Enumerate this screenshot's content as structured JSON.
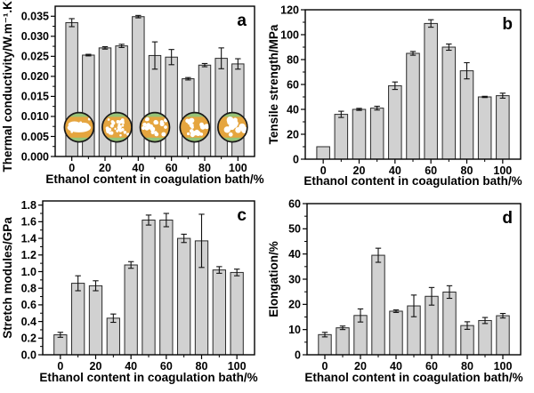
{
  "style": {
    "background": "#ffffff",
    "bar_fill": "#d1d1d1",
    "bar_edge": "#2a2a2a",
    "error_color": "#111111",
    "axis_color": "#000000",
    "text_color": "#000000"
  },
  "chart_data": [
    {
      "panel_label": "a",
      "type": "bar",
      "ylabel": "Thermal conductivity/W.m⁻¹.K⁻¹",
      "xlabel": "Ethanol content in coagulation bath/%",
      "categories": [
        0,
        10,
        20,
        30,
        40,
        50,
        60,
        70,
        80,
        90,
        100
      ],
      "values": [
        0.0334,
        0.0253,
        0.0271,
        0.0276,
        0.0349,
        0.0252,
        0.0248,
        0.0194,
        0.0228,
        0.0245,
        0.0231
      ],
      "errors": [
        0.001,
        0.0002,
        0.0003,
        0.0004,
        0.0003,
        0.0034,
        0.0019,
        0.0003,
        0.0004,
        0.0026,
        0.0013
      ],
      "yticks": [
        "0.000",
        "0.005",
        "0.010",
        "0.015",
        "0.020",
        "0.025",
        "0.030",
        "0.035"
      ],
      "xticks": [
        "0",
        "20",
        "40",
        "60",
        "80",
        "100"
      ],
      "ylim": [
        0,
        0.0375
      ],
      "xlim": [
        -10,
        110
      ],
      "grid": false,
      "insets": {
        "name": "cross-section-micrographs",
        "centers_frac": [
          0.12,
          0.31,
          0.5,
          0.7,
          0.89
        ],
        "center_value": 0.0073,
        "radius": 16.5,
        "matrix_color": "#e5a53f",
        "band_color": "#96c377",
        "pore_color": "#ffffff",
        "ring_color": "#1a1a1a",
        "pores": [
          {
            "merged": true,
            "count": 8,
            "dot_r": 1.2
          },
          {
            "merged": false,
            "count": 30,
            "dot_r": 1.6
          },
          {
            "merged": false,
            "count": 21,
            "dot_r": 2.1
          },
          {
            "merged": false,
            "count": 18,
            "dot_r": 2.3
          },
          {
            "merged": false,
            "count": 12,
            "dot_r": 3.0
          }
        ]
      }
    },
    {
      "panel_label": "b",
      "type": "bar",
      "ylabel": "Tensile strength/MPa",
      "xlabel": "Ethanol content in coagulation bath/%",
      "categories": [
        0,
        10,
        20,
        30,
        40,
        50,
        60,
        70,
        80,
        90,
        100
      ],
      "values": [
        10,
        36,
        40,
        41,
        59,
        85,
        109,
        90,
        71,
        50,
        51
      ],
      "errors": [
        0,
        2.5,
        0.8,
        1.5,
        3,
        1.5,
        3,
        2.5,
        6.5,
        0.5,
        2
      ],
      "yticks": [
        "0",
        "20",
        "40",
        "60",
        "80",
        "100",
        "120"
      ],
      "xticks": [
        "0",
        "20",
        "40",
        "60",
        "80",
        "100"
      ],
      "ylim": [
        0,
        120
      ],
      "xlim": [
        -10,
        110
      ],
      "grid": false
    },
    {
      "panel_label": "c",
      "type": "bar",
      "ylabel": "Stretch modules/GPa",
      "xlabel": "Ethanol content in coagulation bath/%",
      "categories": [
        0,
        10,
        20,
        30,
        40,
        50,
        60,
        70,
        80,
        90,
        100
      ],
      "values": [
        0.24,
        0.86,
        0.83,
        0.44,
        1.08,
        1.62,
        1.62,
        1.4,
        1.37,
        1.02,
        0.99
      ],
      "errors": [
        0.03,
        0.09,
        0.06,
        0.05,
        0.04,
        0.06,
        0.08,
        0.05,
        0.32,
        0.04,
        0.04
      ],
      "yticks": [
        "0.0",
        "0.2",
        "0.4",
        "0.6",
        "0.8",
        "1.0",
        "1.2",
        "1.4",
        "1.6",
        "1.8"
      ],
      "xticks": [
        "0",
        "20",
        "40",
        "60",
        "80",
        "100"
      ],
      "ylim": [
        0,
        1.85
      ],
      "xlim": [
        -10,
        110
      ],
      "grid": false
    },
    {
      "panel_label": "d",
      "type": "bar",
      "ylabel": "Elongation/%",
      "xlabel": "Ethanol content in coagulation bath/%",
      "categories": [
        0,
        10,
        20,
        30,
        40,
        50,
        60,
        70,
        80,
        90,
        100
      ],
      "values": [
        8,
        10.7,
        15.6,
        39.5,
        17.3,
        19.4,
        23.2,
        24.9,
        11.6,
        13.6,
        15.5
      ],
      "errors": [
        0.9,
        0.7,
        2.6,
        2.8,
        0.5,
        4.3,
        3.5,
        2.5,
        1.5,
        1.2,
        0.9
      ],
      "yticks": [
        "0",
        "10",
        "20",
        "30",
        "40",
        "50",
        "60"
      ],
      "xticks": [
        "0",
        "20",
        "40",
        "60",
        "80",
        "100"
      ],
      "ylim": [
        0,
        60
      ],
      "xlim": [
        -10,
        110
      ],
      "grid": false
    }
  ]
}
